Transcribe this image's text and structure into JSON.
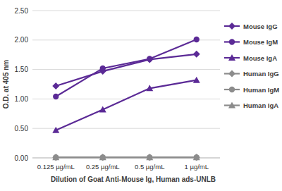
{
  "chart_data": {
    "type": "line",
    "x_label": "Dilution of Goat Anti-Mouse Ig, Human ads-UNLB",
    "y_label": "O.D. at 405 nm",
    "categories": [
      "0.125 µg/mL",
      "0.25 µg/mL",
      "0.5 µg/mL",
      "1 µg/mL"
    ],
    "series": [
      {
        "name": "Mouse IgG",
        "color": "#5b2a96",
        "marker": "diamond",
        "values": [
          1.22,
          1.47,
          1.67,
          1.76
        ]
      },
      {
        "name": "Mouse IgM",
        "color": "#5b2a96",
        "marker": "circle",
        "values": [
          1.04,
          1.52,
          1.68,
          2.01
        ]
      },
      {
        "name": "Mouse IgA",
        "color": "#5b2a96",
        "marker": "triangle",
        "values": [
          0.47,
          0.82,
          1.18,
          1.32
        ]
      },
      {
        "name": "Human IgG",
        "color": "#8c8c8c",
        "marker": "diamond",
        "values": [
          0.01,
          0.01,
          0.01,
          0.01
        ]
      },
      {
        "name": "Human IgM",
        "color": "#8c8c8c",
        "marker": "circle",
        "values": [
          0.01,
          0.01,
          0.01,
          0.01
        ]
      },
      {
        "name": "Human IgA",
        "color": "#8c8c8c",
        "marker": "triangle",
        "values": [
          0.01,
          0.01,
          0.01,
          0.01
        ]
      }
    ],
    "ylim": [
      0,
      2.5
    ],
    "yticks": [
      {
        "value": 0,
        "label": "0.00"
      },
      {
        "value": 0.5,
        "label": "0.50"
      },
      {
        "value": 1,
        "label": "1.00"
      },
      {
        "value": 1.5,
        "label": "1.50"
      },
      {
        "value": 2,
        "label": "2.00"
      },
      {
        "value": 2.5,
        "label": "2.50"
      }
    ],
    "grid": true,
    "legend": "right"
  }
}
